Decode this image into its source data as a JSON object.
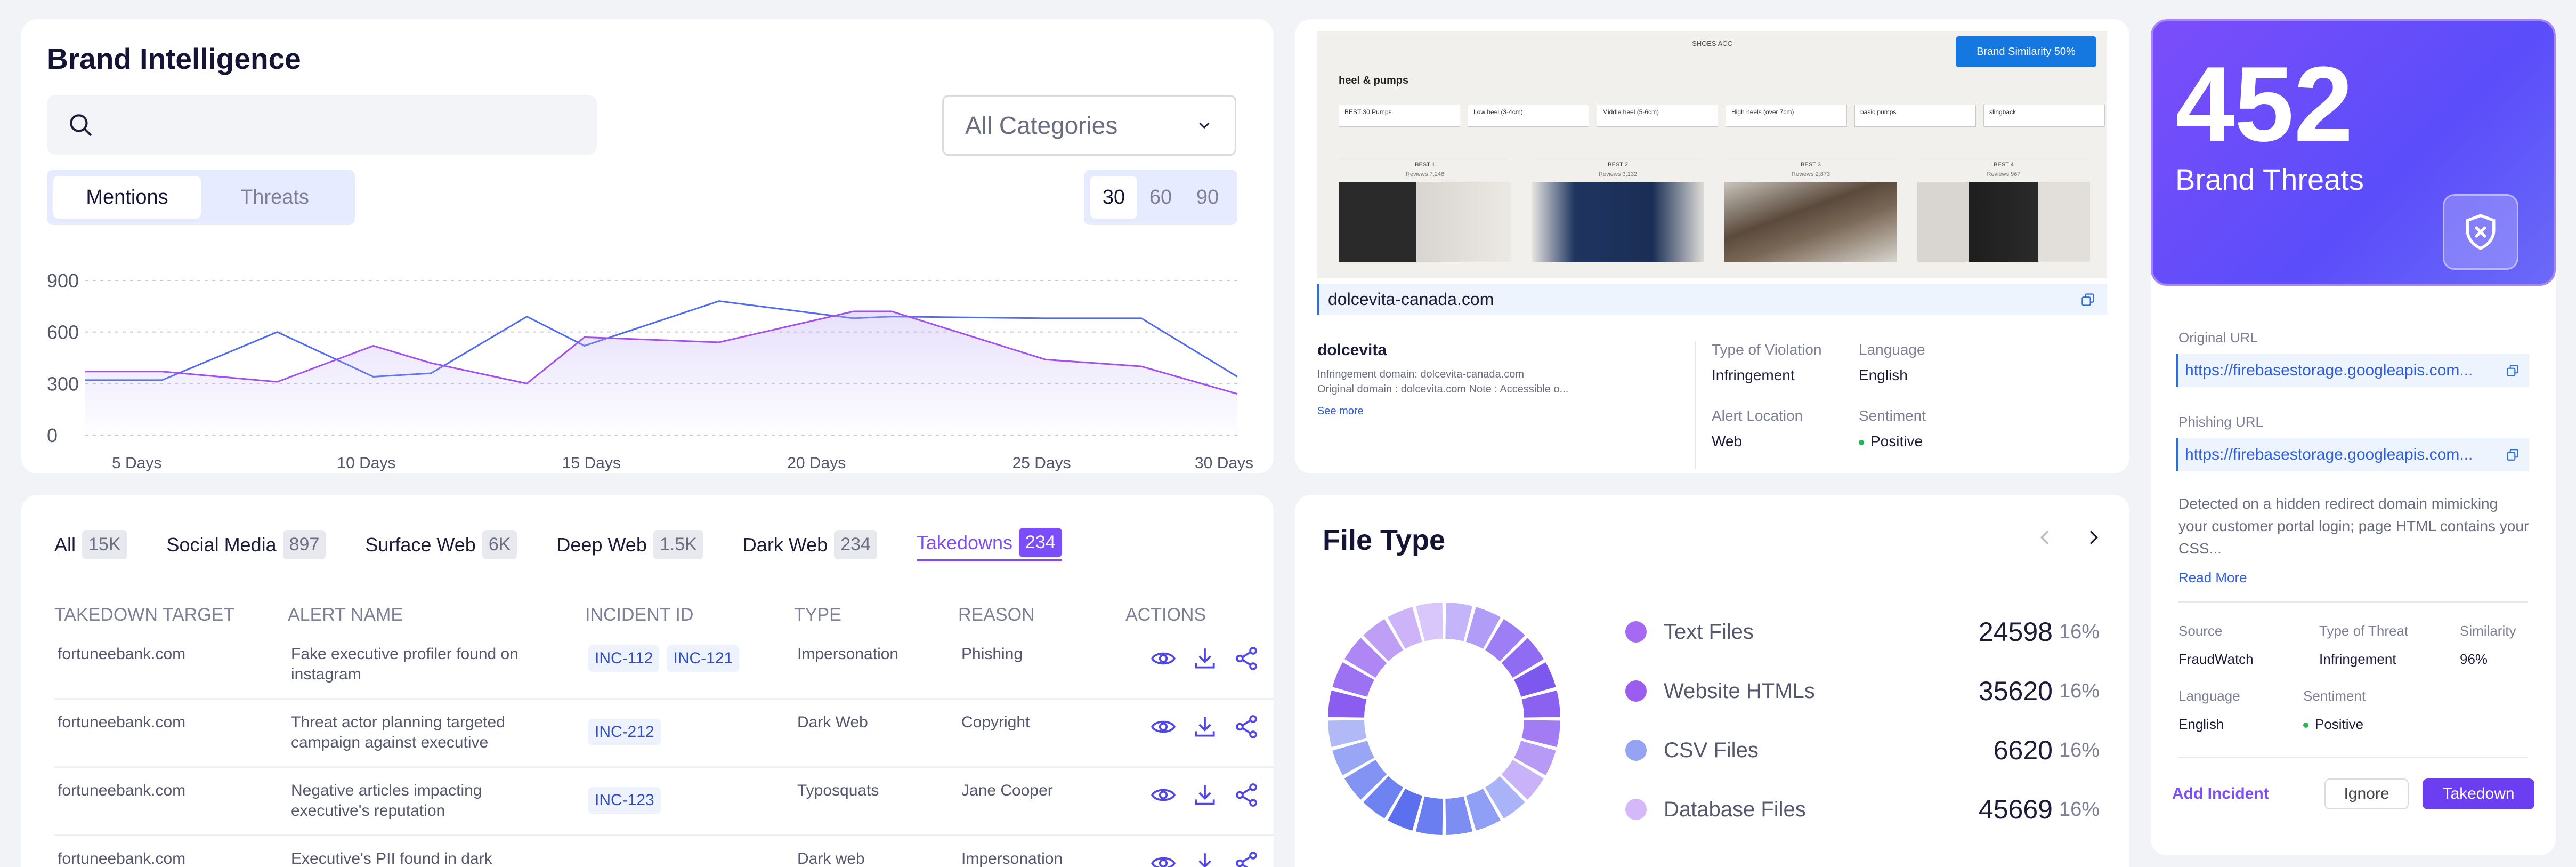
{
  "brand_intel": {
    "title": "Brand Intelligence",
    "category_select": "All Categories",
    "segments": [
      "Mentions",
      "Threats"
    ],
    "active_segment": "Mentions",
    "days": [
      "30",
      "60",
      "90"
    ],
    "active_days": "30"
  },
  "chart_data": {
    "type": "line",
    "title": "",
    "xlabel": "",
    "ylabel": "",
    "ylim": [
      0,
      900
    ],
    "yticks": [
      0,
      300,
      600,
      900
    ],
    "x_tick_labels": [
      "5 Days",
      "10 Days",
      "15 Days",
      "20 Days",
      "25 Days",
      "30 Days"
    ],
    "x": [
      0,
      4,
      10,
      15,
      18,
      23,
      26,
      33,
      40,
      42,
      50,
      55,
      60
    ],
    "grid": "horizontal dashed",
    "series": [
      {
        "color": "#4f6cf0",
        "values": [
          320,
          320,
          600,
          340,
          360,
          690,
          520,
          780,
          680,
          690,
          680,
          680,
          340
        ]
      },
      {
        "color": "#a24ff0",
        "values": [
          370,
          370,
          310,
          520,
          420,
          300,
          570,
          540,
          720,
          720,
          440,
          400,
          240
        ]
      }
    ]
  },
  "preview": {
    "shot_header": "SHOES ACC",
    "shot_sub": "heel & pumps",
    "shot_badge": "Brand Similarity 50%",
    "shot_filters": [
      "BEST 30 Pumps",
      "Low heel (3-4cm)",
      "Middle heel (5-6cm)",
      "High heels (over 7cm)",
      "basic pumps",
      "slingback"
    ],
    "shot_products": [
      {
        "best": "BEST 1",
        "reviews": "Reviews 7,246"
      },
      {
        "best": "BEST 2",
        "reviews": "Reviews 3,132"
      },
      {
        "best": "BEST 3",
        "reviews": "Reviews 2,873"
      },
      {
        "best": "BEST 4",
        "reviews": "Reviews 967"
      }
    ],
    "url": "dolcevita-canada.com",
    "brand": "dolcevita",
    "detail_line1": "Infringement domain: dolcevita-canada.com",
    "detail_line2": "Original domain : dolcevita.com Note : Accessible o...",
    "see_more": "See more",
    "type_of_violation_label": "Type of Violation",
    "type_of_violation": "Infringement",
    "language_label": "Language",
    "language": "English",
    "alert_location_label": "Alert Location",
    "alert_location": "Web",
    "sentiment_label": "Sentiment",
    "sentiment": "Positive"
  },
  "threat_card": {
    "count": "452",
    "label": "Brand Threats",
    "original_url_label": "Original URL",
    "original_url": "https://firebasestorage.googleapis.com...",
    "phishing_url_label": "Phishing URL",
    "phishing_url": "https://firebasestorage.googleapis.com...",
    "description": "Detected on a hidden redirect domain mimicking your customer portal login; page HTML contains your CSS...",
    "read_more": "Read More",
    "source_label": "Source",
    "source": "FraudWatch",
    "type_label": "Type of Threat",
    "type": "Infringement",
    "similarity_label": "Similarity",
    "similarity": "96%",
    "language_label": "Language",
    "language": "English",
    "sentiment_label": "Sentiment",
    "sentiment": "Positive",
    "add_incident": "Add Incident",
    "ignore": "Ignore",
    "takedown": "Takedown"
  },
  "table": {
    "tabs": [
      {
        "label": "All",
        "count": "15K"
      },
      {
        "label": "Social Media",
        "count": "897"
      },
      {
        "label": "Surface Web",
        "count": "6K"
      },
      {
        "label": "Deep Web",
        "count": "1.5K"
      },
      {
        "label": "Dark Web",
        "count": "234"
      },
      {
        "label": "Takedowns",
        "count": "234"
      }
    ],
    "active_tab": "Takedowns",
    "headers": [
      "TAKEDOWN TARGET",
      "ALERT NAME",
      "INCIDENT ID",
      "TYPE",
      "REASON",
      "ACTIONS"
    ],
    "rows": [
      {
        "target": "fortuneebank.com",
        "alert": "Fake executive profiler found on instagram",
        "incidents": [
          "INC-112",
          "INC-121"
        ],
        "type": "Impersonation",
        "reason": "Phishing"
      },
      {
        "target": "fortuneebank.com",
        "alert": "Threat actor planning targeted campaign against executive",
        "incidents": [
          "INC-212"
        ],
        "type": "Dark Web",
        "reason": "Copyright"
      },
      {
        "target": "fortuneebank.com",
        "alert": "Negative articles impacting executive's reputation",
        "incidents": [
          "INC-123"
        ],
        "type": "Typosquats",
        "reason": "Jane Cooper"
      },
      {
        "target": "fortuneebank.com",
        "alert": "Executive's PII found in dark",
        "incidents": [
          ""
        ],
        "type": "Dark web",
        "reason": "Impersonation"
      }
    ]
  },
  "file_type": {
    "title": "File Type",
    "items": [
      {
        "name": "Text Files",
        "value": "24598",
        "pct": "16%",
        "color": "#a66af2"
      },
      {
        "name": "Website HTMLs",
        "value": "35620",
        "pct": "16%",
        "color": "#9b5cf0"
      },
      {
        "name": "CSV Files",
        "value": "6620",
        "pct": "16%",
        "color": "#96a3f5"
      },
      {
        "name": "Database Files",
        "value": "45669",
        "pct": "16%",
        "color": "#d4b8f8"
      }
    ]
  }
}
